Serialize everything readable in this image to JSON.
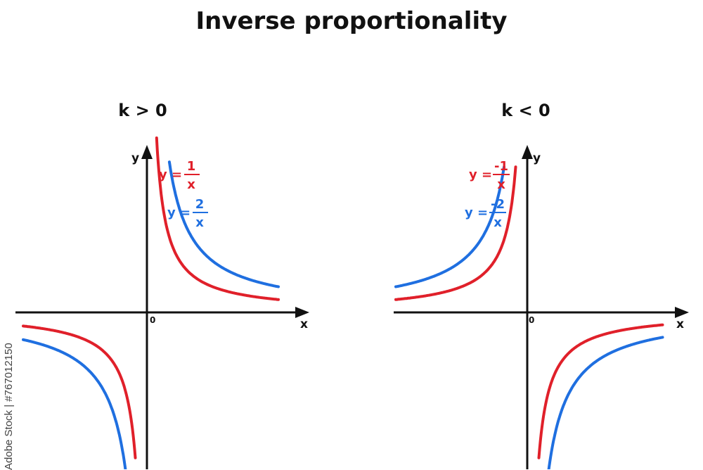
{
  "title": "Inverse proportionality",
  "watermark": "Adobe Stock | #767012150",
  "colors": {
    "red": "#e0202a",
    "blue": "#1f6fe0",
    "axis": "#111111"
  },
  "chart_data": [
    {
      "type": "line",
      "title": "k > 0",
      "xlabel": "x",
      "ylabel": "y",
      "origin_label": "0",
      "xlim": [
        -3.2,
        3.8
      ],
      "ylim": [
        -3.45,
        3.45
      ],
      "series": [
        {
          "name": "y = 1/x",
          "numerator": "1",
          "denominator": "x",
          "k": 1,
          "color": "#e0202a",
          "branches": [
            {
              "x_from": 0.25,
              "x_to": 3.4
            },
            {
              "x_from": -3.2,
              "x_to": -0.3
            }
          ]
        },
        {
          "name": "y = 2/x",
          "numerator": "2",
          "denominator": "x",
          "k": 2,
          "color": "#1f6fe0",
          "branches": [
            {
              "x_from": 0.58,
              "x_to": 3.4
            },
            {
              "x_from": -3.2,
              "x_to": -0.53
            }
          ]
        }
      ]
    },
    {
      "type": "line",
      "title": "k < 0",
      "xlabel": "x",
      "ylabel": "y",
      "origin_label": "0",
      "xlim": [
        -3.8,
        4.0
      ],
      "ylim": [
        -3.45,
        3.45
      ],
      "series": [
        {
          "name": "y = -1/x",
          "numerator": "-1",
          "denominator": "x",
          "k": -1,
          "color": "#e0202a",
          "branches": [
            {
              "x_from": -3.4,
              "x_to": -0.3
            },
            {
              "x_from": 0.3,
              "x_to": 3.5
            }
          ]
        },
        {
          "name": "y = -2/x",
          "numerator": "-2",
          "denominator": "x",
          "k": -2,
          "color": "#1f6fe0",
          "branches": [
            {
              "x_from": -3.4,
              "x_to": -0.6
            },
            {
              "x_from": 0.55,
              "x_to": 3.5
            }
          ]
        }
      ]
    }
  ]
}
